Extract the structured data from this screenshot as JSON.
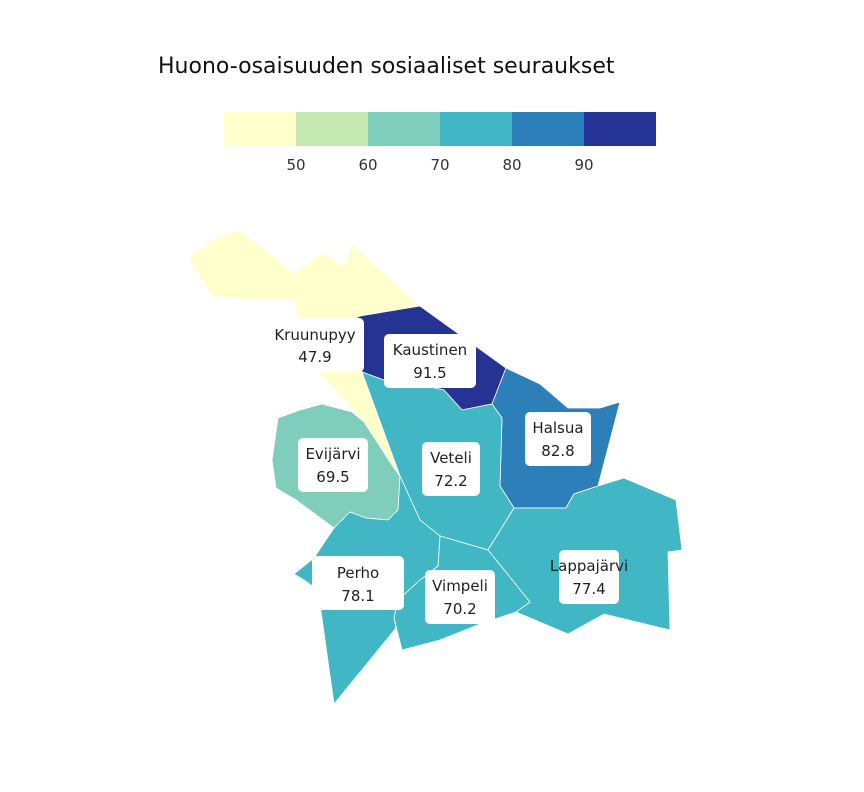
{
  "title": "Huono-osaisuuden sosiaaliset seuraukset",
  "legend": {
    "ticks": [
      "50",
      "60",
      "70",
      "80",
      "90"
    ],
    "colors": [
      "#ffffcc",
      "#c7e9b4",
      "#7fcdbb",
      "#41b6c4",
      "#2c7fb8",
      "#253494"
    ]
  },
  "regions": [
    {
      "name": "Kruunupyy",
      "value": "47.9",
      "color": "#ffffcc"
    },
    {
      "name": "Kaustinen",
      "value": "91.5",
      "color": "#253494"
    },
    {
      "name": "Halsua",
      "value": "82.8",
      "color": "#2c7fb8"
    },
    {
      "name": "Evijärvi",
      "value": "69.5",
      "color": "#7fcdbb"
    },
    {
      "name": "Veteli",
      "value": "72.2",
      "color": "#41b6c4"
    },
    {
      "name": "Lappajärvi",
      "value": "77.4",
      "color": "#41b6c4"
    },
    {
      "name": "Vimpeli",
      "value": "70.2",
      "color": "#41b6c4"
    },
    {
      "name": "Perho",
      "value": "78.1",
      "color": "#41b6c4"
    }
  ]
}
